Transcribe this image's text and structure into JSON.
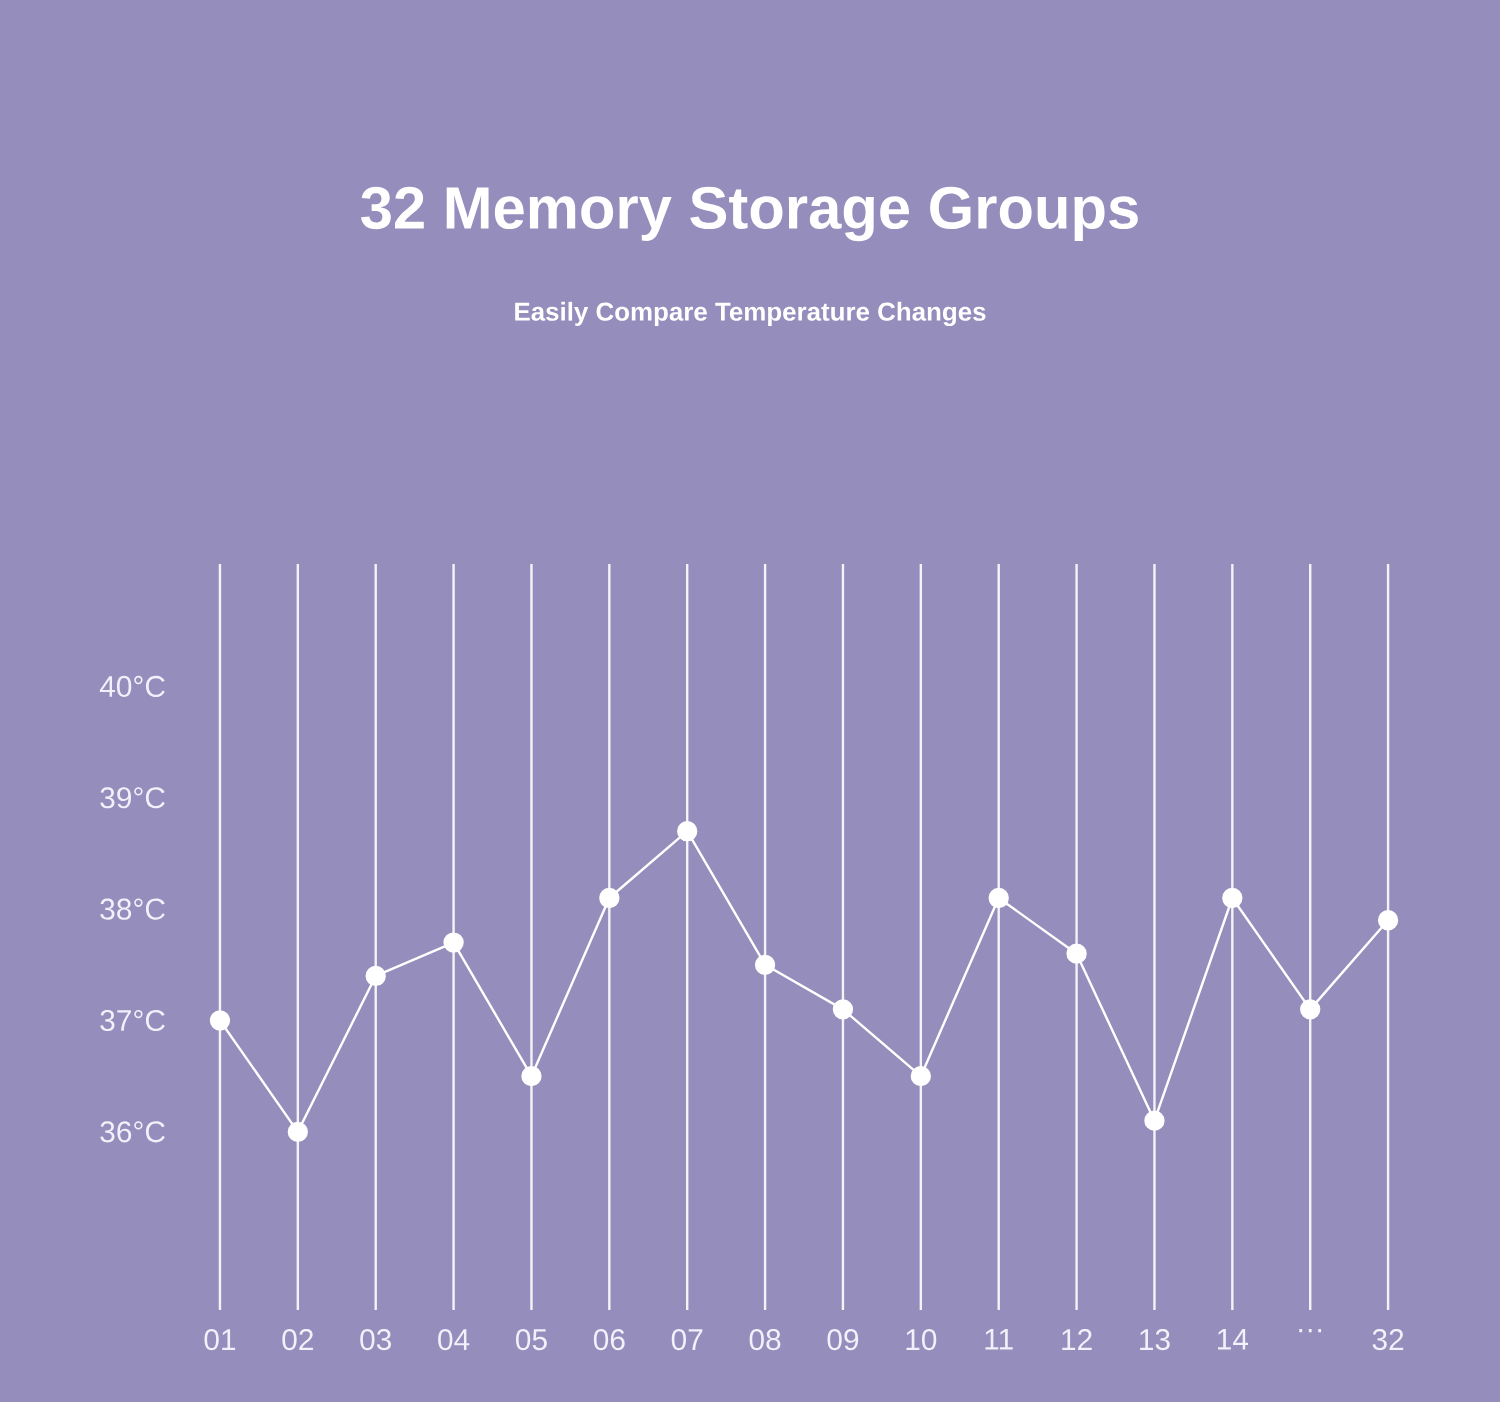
{
  "chart_data": {
    "type": "line",
    "title": "32 Memory Storage Groups",
    "subtitle": "Easily Compare Temperature Changes",
    "categories": [
      "01",
      "02",
      "03",
      "04",
      "05",
      "06",
      "07",
      "08",
      "09",
      "10",
      "11",
      "12",
      "13",
      "14",
      "…",
      "32"
    ],
    "series": [
      {
        "color": "#ffffff",
        "values": [
          37.0,
          36.0,
          37.4,
          37.7,
          36.5,
          38.1,
          38.7,
          37.5,
          37.1,
          36.5,
          38.1,
          37.6,
          36.1,
          38.1,
          37.1,
          37.9
        ]
      }
    ],
    "ylim": [
      34.4,
      41.1
    ],
    "yticks": [
      {
        "value": 36,
        "label": "36°C"
      },
      {
        "value": 37,
        "label": "37°C"
      },
      {
        "value": 38,
        "label": "38°C"
      },
      {
        "value": 39,
        "label": "39°C"
      },
      {
        "value": 40,
        "label": "40°C"
      }
    ],
    "grid": "x",
    "marker": "circle",
    "line_style": "solid"
  }
}
